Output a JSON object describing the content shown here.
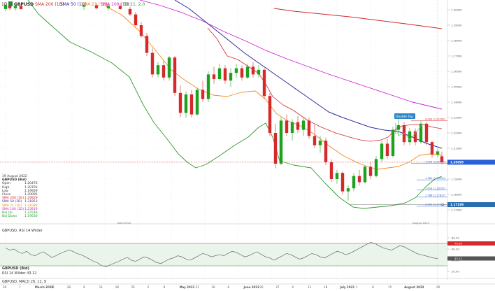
{
  "header": {
    "timeframe": "1D",
    "symbol": "GBPUSD",
    "ind1": "SMA 200 (1D)",
    "ind2": "SMA 50 (1D)",
    "ind3": "SMA 21 (1D)",
    "ind4": "SMA 100 (1D)",
    "bb": "BB 21, 2.0",
    "colors": {
      "sma200": "#cc2b2b",
      "sma50": "#2b2b9e",
      "sma21": "#f08a24",
      "sma100": "#d21fd2",
      "bb": "#2e9b2e",
      "up": "#1ea11e",
      "down": "#d62a2a"
    }
  },
  "sidebar": {
    "date": "19 August 2022",
    "symbol": "GBPUSD (Bid)",
    "rows": [
      {
        "label": "Open",
        "value": "1.20476",
        "color": "#333333"
      },
      {
        "label": "High",
        "value": "1.20793",
        "color": "#333333"
      },
      {
        "label": "Low",
        "value": "1.19959",
        "color": "#333333"
      },
      {
        "label": "Close",
        "value": "1.20095",
        "color": "#333333"
      },
      {
        "label": "SMA 200 (1D)",
        "value": "1.29829",
        "color": "#cc2b2b"
      },
      {
        "label": "SMA 50 (1D)",
        "value": "1.21853",
        "color": "#2b2b9e"
      },
      {
        "label": "SMA 21 (1D)",
        "value": "1.21088",
        "color": "#f08a24"
      },
      {
        "label": "SMA 100 (1D)",
        "value": "1.23819",
        "color": "#d21fd2"
      },
      {
        "label": "Bol Up",
        "value": "1.22548",
        "color": "#2e9b2e"
      },
      {
        "label": "Bol Down",
        "value": "1.19630",
        "color": "#2e9b2e"
      }
    ]
  },
  "annotation": {
    "label": "Double Top"
  },
  "fib_levels": [
    {
      "label": "0.000 (1.22787)",
      "price": 1.22787,
      "color": "#d62a2a"
    },
    {
      "label": "1.000 (1.20009)",
      "price": 1.20009,
      "color": "#2b5fd9"
    },
    {
      "label": "1.382 (1.18950)",
      "price": 1.1895,
      "color": "#2b5fd9"
    },
    {
      "label": "1.618 (1.18297)",
      "price": 1.18297,
      "color": "#2b5fd9"
    },
    {
      "label": "1.786 (1.17827)",
      "price": 1.17827,
      "color": "#2b5fd9"
    },
    {
      "label": "2.000 (1.17231)",
      "price": 1.17231,
      "color": "#2b5fd9"
    }
  ],
  "price_axis": {
    "ticks": [
      "1.30000",
      "1.29000",
      "1.28000",
      "1.27000",
      "1.26000",
      "1.25000",
      "1.24000",
      "1.23000",
      "1.22000",
      "1.21000",
      "1.19000",
      "1.18000",
      "1.17000"
    ],
    "current": "1.20095",
    "low_marker": "1.17339"
  },
  "rsi": {
    "title": "GBPUSD, RSI 14 Wilder",
    "symbol": "GBPUSD (Bid)",
    "value_line": "RSI 14 Wilder  43.12",
    "ticks": [
      "80.00",
      "60.00",
      "40.00",
      "20.00"
    ],
    "markers": [
      "70.00",
      "43.12"
    ]
  },
  "macd": {
    "title": "GBPUSD, MACD 26, 12, 9"
  },
  "time_axis": {
    "labels": [
      {
        "text": "28"
      },
      {
        "text": "7"
      },
      {
        "text": "March 2022",
        "major": true
      },
      {
        "text": "21"
      },
      {
        "text": "28"
      },
      {
        "text": "4"
      },
      {
        "text": "11"
      },
      {
        "text": "18"
      },
      {
        "text": "25"
      },
      {
        "text": "2"
      },
      {
        "text": "9"
      },
      {
        "text": "May 2022",
        "major": true
      },
      {
        "text": "23"
      },
      {
        "text": "30"
      },
      {
        "text": "6"
      },
      {
        "text": "June 2022",
        "major": true
      },
      {
        "text": "20"
      },
      {
        "text": "27"
      },
      {
        "text": "4"
      },
      {
        "text": "11"
      },
      {
        "text": "18"
      },
      {
        "text": "July 2022",
        "major": true
      },
      {
        "text": "1"
      },
      {
        "text": "8"
      },
      {
        "text": "15"
      },
      {
        "text": "August 2022",
        "major": true
      },
      {
        "text": "22"
      },
      {
        "text": "29"
      }
    ],
    "april_label": "April 2022",
    "aug_label": "August 2022"
  }
}
